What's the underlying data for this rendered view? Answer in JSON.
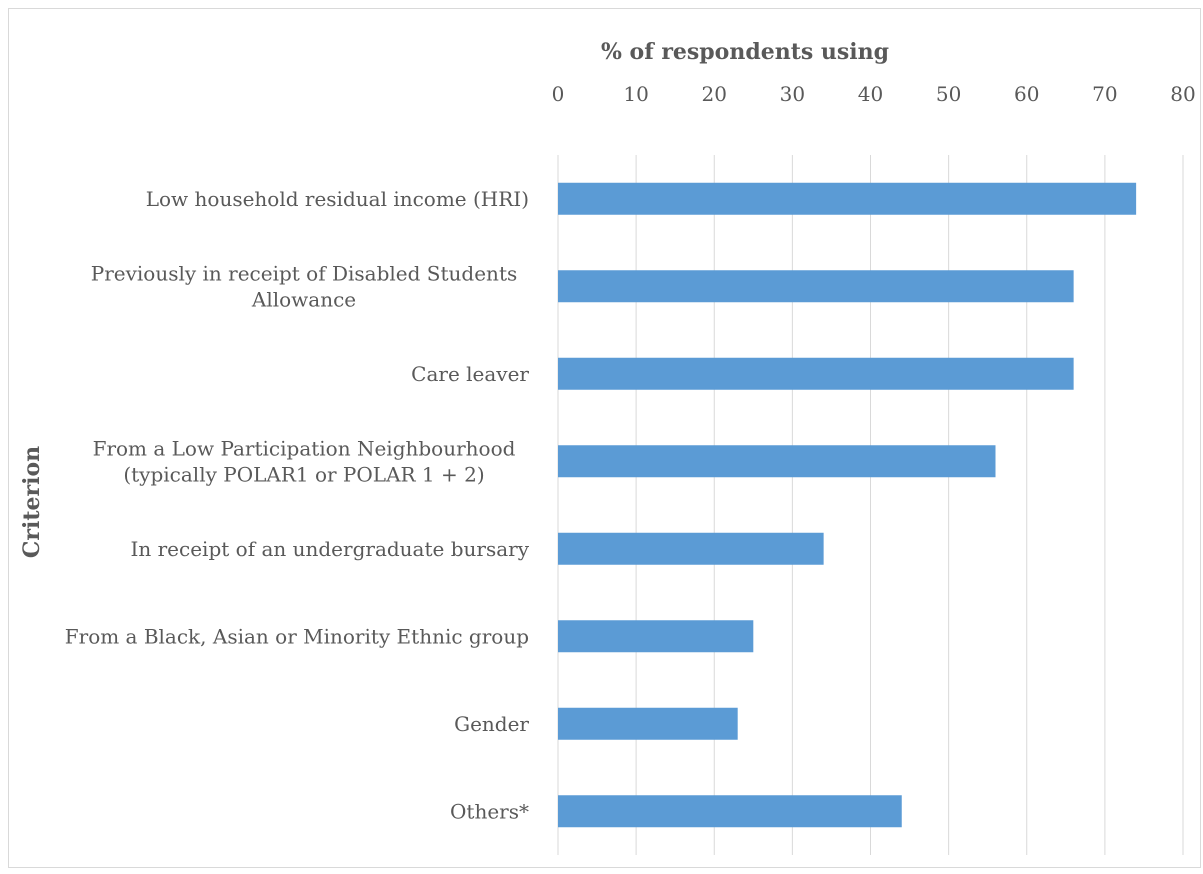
{
  "chart_data": {
    "type": "bar",
    "orientation": "horizontal",
    "title": "",
    "xlabel": "% of respondents using",
    "ylabel": "Criterion",
    "xlim": [
      0,
      80
    ],
    "xticks": [
      0,
      10,
      20,
      30,
      40,
      50,
      60,
      70,
      80
    ],
    "x_axis_position": "top",
    "grid": true,
    "bar_color": "#5b9bd5",
    "categories": [
      [
        "Low household residual income (HRI)"
      ],
      [
        "Previously in receipt of Disabled Students",
        "Allowance"
      ],
      [
        "Care leaver"
      ],
      [
        "From a Low Participation Neighbourhood",
        "(typically POLAR1 or POLAR 1 + 2)"
      ],
      [
        "In receipt of an undergraduate bursary"
      ],
      [
        "From a Black, Asian or Minority Ethnic group"
      ],
      [
        "Gender"
      ],
      [
        "Others*"
      ]
    ],
    "values": [
      74,
      66,
      66,
      56,
      34,
      25,
      23,
      44
    ]
  }
}
